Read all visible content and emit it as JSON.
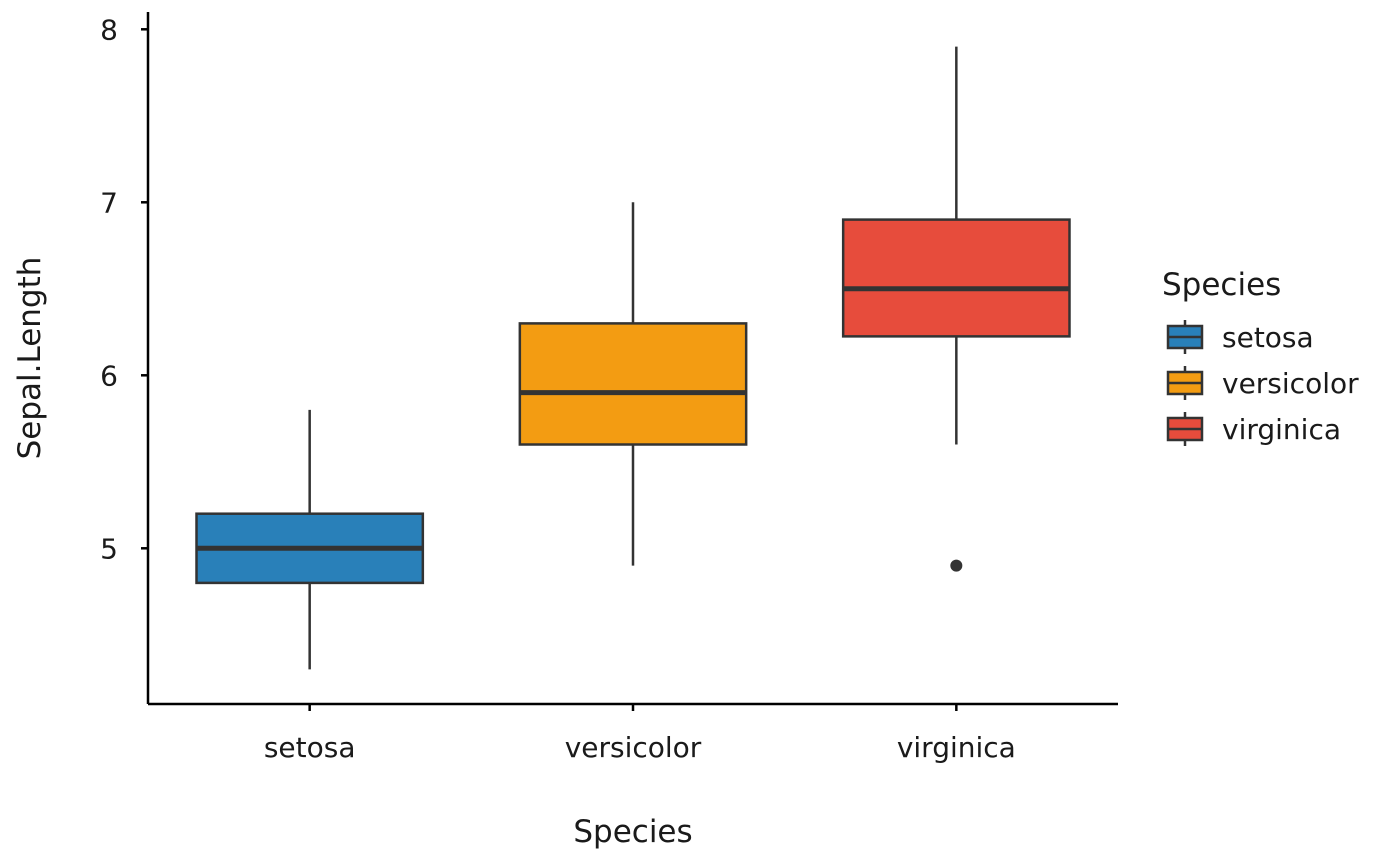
{
  "chart_data": {
    "type": "boxplot",
    "xlabel": "Species",
    "ylabel": "Sepal.Length",
    "categories": [
      "setosa",
      "versicolor",
      "virginica"
    ],
    "ylim": [
      4.1,
      8.1
    ],
    "yticks": [
      5,
      6,
      7,
      8
    ],
    "grid": false,
    "legend": {
      "title": "Species",
      "placement": "right",
      "entries": [
        "setosa",
        "versicolor",
        "virginica"
      ]
    },
    "series": [
      {
        "name": "setosa",
        "color": "#2980B9",
        "whisker_low": 4.3,
        "q1": 4.8,
        "median": 5.0,
        "q3": 5.2,
        "whisker_high": 5.8,
        "outliers": []
      },
      {
        "name": "versicolor",
        "color": "#F39C12",
        "whisker_low": 4.9,
        "q1": 5.6,
        "median": 5.9,
        "q3": 6.3,
        "whisker_high": 7.0,
        "outliers": []
      },
      {
        "name": "virginica",
        "color": "#E74C3C",
        "whisker_low": 5.6,
        "q1": 6.225,
        "median": 6.5,
        "q3": 6.9,
        "whisker_high": 7.9,
        "outliers": [
          4.9
        ]
      }
    ]
  }
}
